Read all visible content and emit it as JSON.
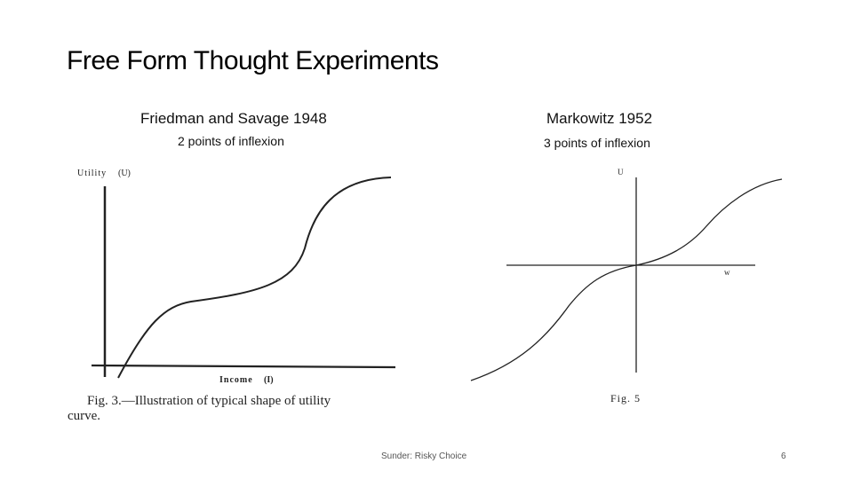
{
  "slide": {
    "title": "Free Form Thought Experiments",
    "footer_text": "Sunder: Risky Choice",
    "page_number": "6"
  },
  "left_panel": {
    "heading": "Friedman and Savage 1948",
    "subheading": "2 points of inflexion",
    "figure": {
      "y_axis_label": "Utility",
      "y_axis_symbol": "(U)",
      "x_axis_label": "Income",
      "x_axis_symbol": "(I)",
      "caption_line1": "Fig. 3.—Illustration of typical shape of utility",
      "caption_line2": "curve."
    }
  },
  "right_panel": {
    "heading": "Markowitz 1952",
    "subheading": "3 points of inflexion",
    "figure": {
      "y_axis_label": "U",
      "x_axis_label": "w",
      "caption": "Fig. 5"
    }
  }
}
